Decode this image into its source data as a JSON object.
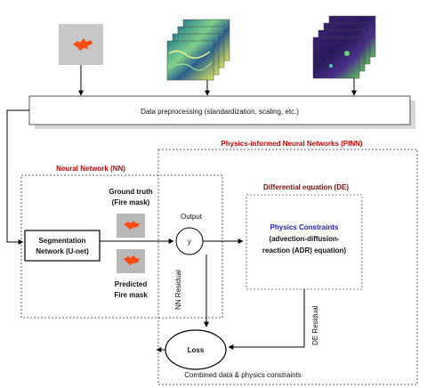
{
  "preprocessing": {
    "label": "Data preprocessing (standardization, scaling, etc.)"
  },
  "top_labels": {
    "left": "Neural Network (NN)",
    "right": "Physics-informed Neural Networks (PINN)"
  },
  "segmentation": {
    "line1": "Segmentation",
    "line2": "Network (U-net)"
  },
  "ground_truth": {
    "line1": "Ground truth",
    "line2": "(Fire mask)"
  },
  "predicted": {
    "line1": "Predicted",
    "line2": "Fire mask"
  },
  "output": {
    "label": "Output",
    "symbol": "y"
  },
  "de": {
    "title": "Differential equation (DE)",
    "physics_title": "Physics Constraints",
    "line1": "(advection-diffusion-",
    "line2": "reaction (ADR) equation)"
  },
  "residuals": {
    "nn": "NN Residual",
    "de": "DE Residual"
  },
  "loss": {
    "label": "Loss"
  },
  "combined": {
    "label": "Combined data & physics constraints"
  },
  "colors": {
    "red_label": "#cc0000",
    "dark_red": "#7a1010",
    "blue": "#1a1acc",
    "fire": "#ff4a14",
    "mask_bg": "#b8b8b8"
  }
}
